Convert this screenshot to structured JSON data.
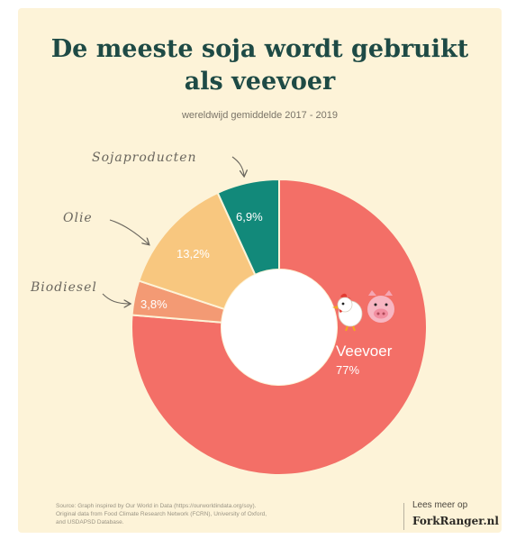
{
  "title_line1": "De meeste soja wordt gebruikt",
  "title_line2": "als veevoer",
  "subtitle": "wereldwijd gemiddelde 2017 - 2019",
  "chart_data": {
    "type": "pie",
    "variant": "donut",
    "title": "De meeste soja wordt gebruikt als veevoer",
    "subtitle": "wereldwijd gemiddelde 2017 - 2019",
    "slices": [
      {
        "label": "Veevoer",
        "value": 77,
        "value_label": "77%",
        "color": "#f36f67"
      },
      {
        "label": "Biodiesel",
        "value": 3.8,
        "value_label": "3,8%",
        "color": "#f39a74"
      },
      {
        "label": "Olie",
        "value": 13.2,
        "value_label": "13,2%",
        "color": "#f8c77f"
      },
      {
        "label": "Sojaproducten",
        "value": 6.9,
        "value_label": "6,9%",
        "color": "#12897a"
      }
    ]
  },
  "icons": [
    "chicken-icon",
    "pig-icon"
  ],
  "footer": {
    "source_line1": "Source: Graph inspired by Our World in Data (https://ourworldindata.org/soy).",
    "source_line2": "Original data from Food Climate Research Network (FCRN), University of Oxford,",
    "source_line3": "and USDAPSD Database.",
    "more_label": "Lees meer op",
    "brand": "ForkRanger.nl"
  }
}
